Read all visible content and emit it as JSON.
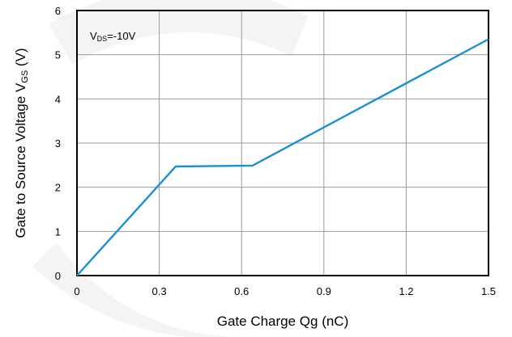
{
  "chart_data": {
    "type": "line",
    "title": "",
    "xlabel": "Gate Charge Qg (nC)",
    "ylabel_main": "Gate to Source Voltage V",
    "ylabel_sub": "GS",
    "ylabel_unit": " (V)",
    "annotation_main": "V",
    "annotation_sub": "DS",
    "annotation_rest": "=-10V",
    "xlim": [
      0,
      1.5
    ],
    "ylim": [
      0,
      6
    ],
    "xticks": [
      "0",
      "0.3",
      "0.6",
      "0.9",
      "1.2",
      "1.5"
    ],
    "yticks": [
      "0",
      "1",
      "2",
      "3",
      "4",
      "5",
      "6"
    ],
    "grid": true,
    "series": [
      {
        "color": "#1a90d2",
        "x": [
          0,
          0.36,
          0.64,
          1.5
        ],
        "y": [
          0,
          2.47,
          2.49,
          5.35
        ]
      }
    ]
  }
}
